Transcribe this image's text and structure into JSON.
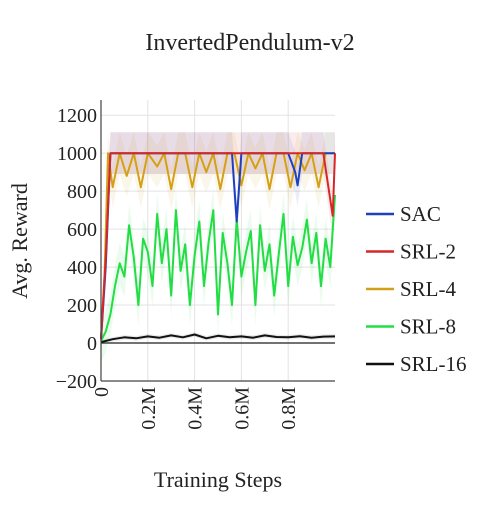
{
  "chart_data": {
    "type": "line",
    "title": "InvertedPendulum-v2",
    "xlabel": "Training Steps",
    "ylabel": "Avg. Reward",
    "xlim": [
      0,
      1000000
    ],
    "ylim": [
      -200,
      1280
    ],
    "xticks": [
      {
        "value": 0,
        "label": "0"
      },
      {
        "value": 200000,
        "label": "0.2M"
      },
      {
        "value": 400000,
        "label": "0.4M"
      },
      {
        "value": 600000,
        "label": "0.6M"
      },
      {
        "value": 800000,
        "label": "0.8M"
      }
    ],
    "yticks": [
      {
        "value": -200,
        "label": "−200"
      },
      {
        "value": 0,
        "label": "0"
      },
      {
        "value": 200,
        "label": "200"
      },
      {
        "value": 400,
        "label": "400"
      },
      {
        "value": 600,
        "label": "600"
      },
      {
        "value": 800,
        "label": "800"
      },
      {
        "value": 1000,
        "label": "1000"
      },
      {
        "value": 1200,
        "label": "1200"
      }
    ],
    "grid": true,
    "legend_position": "right",
    "series": [
      {
        "name": "SAC",
        "color": "#1f3fbf",
        "x": [
          0,
          20000,
          40000,
          60000,
          100000,
          150000,
          200000,
          250000,
          300000,
          350000,
          400000,
          450000,
          500000,
          560000,
          580000,
          600000,
          650000,
          700000,
          750000,
          800000,
          830000,
          840000,
          860000,
          900000,
          950000,
          1000000
        ],
        "y": [
          20,
          400,
          1000,
          1000,
          1000,
          1000,
          1000,
          1000,
          1000,
          1000,
          1000,
          1000,
          1000,
          1000,
          640,
          1000,
          1000,
          1000,
          1000,
          1000,
          900,
          830,
          1000,
          1000,
          1000,
          1000
        ]
      },
      {
        "name": "SRL-2",
        "color": "#d62728",
        "x": [
          0,
          20000,
          40000,
          60000,
          100000,
          150000,
          200000,
          250000,
          300000,
          350000,
          400000,
          450000,
          500000,
          550000,
          600000,
          650000,
          700000,
          750000,
          800000,
          850000,
          900000,
          950000,
          990000,
          1000000
        ],
        "y": [
          20,
          450,
          1000,
          1000,
          1000,
          1000,
          1000,
          1000,
          1000,
          1000,
          1000,
          1000,
          1000,
          1000,
          1000,
          1000,
          1000,
          1000,
          1000,
          1000,
          1000,
          1000,
          670,
          1000
        ]
      },
      {
        "name": "SRL-4",
        "color": "#d4a017",
        "x": [
          0,
          15000,
          30000,
          50000,
          80000,
          110000,
          140000,
          170000,
          200000,
          240000,
          270000,
          300000,
          330000,
          360000,
          390000,
          420000,
          450000,
          480000,
          510000,
          540000,
          570000,
          600000,
          630000,
          660000,
          690000,
          720000,
          750000,
          780000,
          810000,
          840000,
          870000,
          900000,
          930000,
          960000,
          1000000
        ],
        "y": [
          20,
          350,
          1000,
          820,
          1000,
          880,
          1000,
          820,
          1000,
          930,
          1000,
          810,
          1000,
          1000,
          820,
          1000,
          900,
          1000,
          810,
          1000,
          1000,
          830,
          1000,
          920,
          1000,
          810,
          1000,
          1000,
          820,
          1000,
          910,
          1000,
          820,
          1000,
          1000
        ]
      },
      {
        "name": "SRL-8",
        "color": "#22dd44",
        "x": [
          0,
          20000,
          40000,
          60000,
          80000,
          100000,
          120000,
          140000,
          160000,
          180000,
          200000,
          220000,
          240000,
          260000,
          280000,
          300000,
          320000,
          340000,
          360000,
          380000,
          400000,
          420000,
          440000,
          460000,
          480000,
          500000,
          520000,
          540000,
          560000,
          580000,
          600000,
          620000,
          640000,
          660000,
          680000,
          700000,
          720000,
          740000,
          760000,
          780000,
          800000,
          820000,
          840000,
          860000,
          880000,
          900000,
          920000,
          940000,
          960000,
          980000,
          1000000
        ],
        "y": [
          10,
          60,
          150,
          300,
          420,
          350,
          620,
          450,
          200,
          550,
          480,
          300,
          680,
          420,
          600,
          250,
          700,
          380,
          520,
          200,
          460,
          640,
          300,
          530,
          700,
          150,
          580,
          420,
          200,
          650,
          350,
          480,
          590,
          200,
          620,
          380,
          520,
          250,
          470,
          680,
          300,
          560,
          410,
          500,
          650,
          420,
          580,
          300,
          550,
          400,
          780
        ]
      },
      {
        "name": "SRL-16",
        "color": "#111111",
        "x": [
          0,
          50000,
          100000,
          150000,
          200000,
          250000,
          300000,
          350000,
          400000,
          450000,
          500000,
          550000,
          600000,
          650000,
          700000,
          750000,
          800000,
          850000,
          900000,
          950000,
          1000000
        ],
        "y": [
          5,
          20,
          30,
          25,
          35,
          28,
          40,
          30,
          45,
          25,
          38,
          30,
          35,
          28,
          40,
          32,
          30,
          36,
          28,
          34,
          35
        ]
      }
    ]
  }
}
